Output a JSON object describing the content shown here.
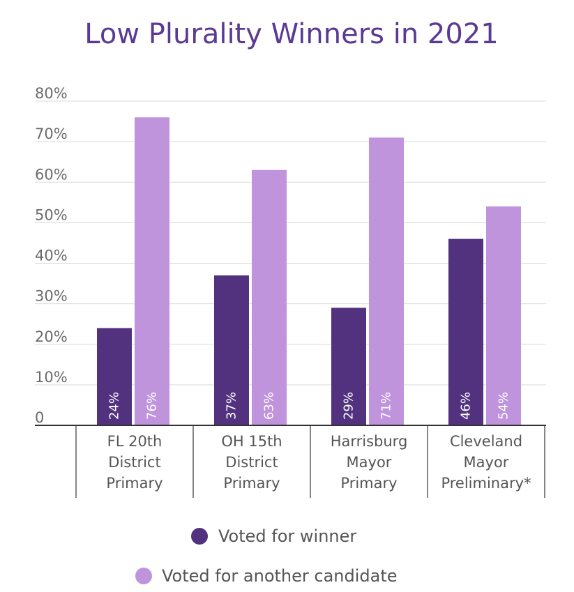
{
  "chart_data": {
    "type": "bar",
    "title": "Low Plurality Winners in 2021",
    "categories": [
      [
        "FL 20th",
        "District",
        "Primary"
      ],
      [
        "OH 15th",
        "District",
        "Primary"
      ],
      [
        "Harrisburg",
        "Mayor",
        "Primary"
      ],
      [
        "Cleveland",
        "Mayor",
        "Preliminary*"
      ]
    ],
    "series": [
      {
        "name": "Voted for winner",
        "values": [
          24,
          37,
          29,
          46
        ],
        "labels": [
          "24%",
          "37%",
          "29%",
          "46%"
        ],
        "color": "#52317f"
      },
      {
        "name": "Voted for another candidate",
        "values": [
          76,
          63,
          71,
          54
        ],
        "labels": [
          "76%",
          "63%",
          "71%",
          "54%"
        ],
        "color": "#bf94dc"
      }
    ],
    "ylim": [
      0,
      80
    ],
    "yticks": [
      0,
      10,
      20,
      30,
      40,
      50,
      60,
      70,
      80
    ],
    "ytick_labels": [
      "0",
      "10%",
      "20%",
      "30%",
      "40%",
      "50%",
      "60%",
      "70%",
      "80%"
    ],
    "xlabel": "",
    "ylabel": "",
    "grid": true,
    "legend_position": "bottom",
    "colors": {
      "title": "#5b3a93",
      "axis": "#333333",
      "grid": "#d9d9d9"
    }
  }
}
